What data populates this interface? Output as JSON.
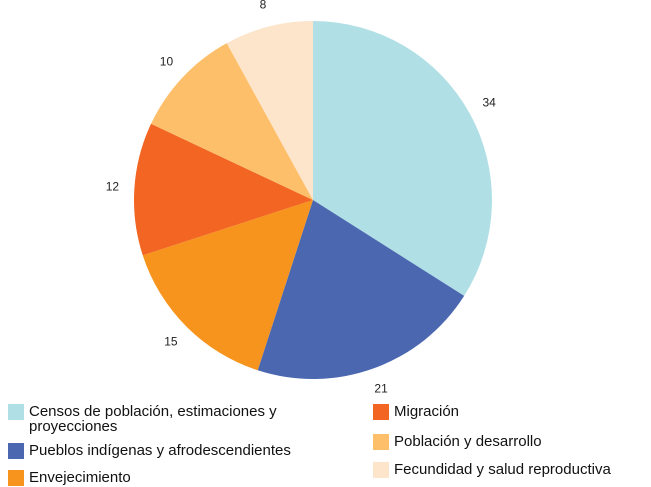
{
  "chart_data": {
    "type": "pie",
    "categories": [
      "Censos de población, estimaciones y proyecciones",
      "Pueblos indígenas y afrodescendientes",
      "Envejecimiento",
      "Migración",
      "Población y desarrollo",
      "Fecundidad y salud reproductiva"
    ],
    "values": [
      34,
      21,
      15,
      12,
      10,
      8
    ],
    "colors": [
      "#b0dfe5",
      "#4a67b0",
      "#f7941d",
      "#f26522",
      "#fdbf6a",
      "#fde5cc"
    ],
    "legend": "bottom"
  }
}
